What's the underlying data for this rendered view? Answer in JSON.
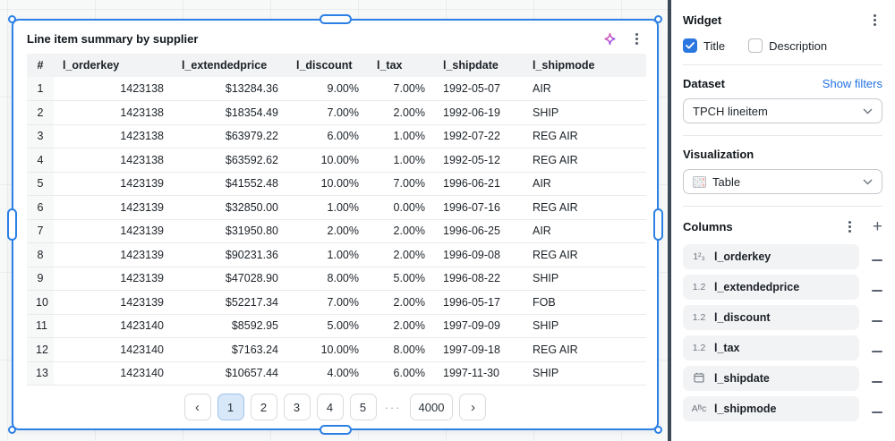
{
  "colors": {
    "selection_blue": "#2c80e4",
    "link_blue": "#2272e3",
    "checkbox_blue": "#2b77e0",
    "panel_divider": "#3d4956",
    "active_page_bg": "#d9e8f9"
  },
  "widget": {
    "title": "Line item summary by supplier",
    "icons": [
      "sparkle-icon",
      "kebab-menu-icon"
    ],
    "table": {
      "columns": [
        {
          "label": "#",
          "align": "center",
          "width": 30,
          "index": true
        },
        {
          "label": "l_orderkey",
          "align": "right",
          "width": 133
        },
        {
          "label": "l_extendedprice",
          "align": "right",
          "width": 128
        },
        {
          "label": "l_discount",
          "align": "right",
          "width": 90
        },
        {
          "label": "l_tax",
          "align": "right",
          "width": 74
        },
        {
          "label": "l_shipdate",
          "align": "left",
          "width": 100
        },
        {
          "label": "l_shipmode",
          "align": "left",
          "width": 137
        }
      ],
      "rows": [
        [
          "1",
          "1423138",
          "$13284.36",
          "9.00%",
          "7.00%",
          "1992-05-07",
          "AIR"
        ],
        [
          "2",
          "1423138",
          "$18354.49",
          "7.00%",
          "2.00%",
          "1992-06-19",
          "SHIP"
        ],
        [
          "3",
          "1423138",
          "$63979.22",
          "6.00%",
          "1.00%",
          "1992-07-22",
          "REG AIR"
        ],
        [
          "4",
          "1423138",
          "$63592.62",
          "10.00%",
          "1.00%",
          "1992-05-12",
          "REG AIR"
        ],
        [
          "5",
          "1423139",
          "$41552.48",
          "10.00%",
          "7.00%",
          "1996-06-21",
          "AIR"
        ],
        [
          "6",
          "1423139",
          "$32850.00",
          "1.00%",
          "0.00%",
          "1996-07-16",
          "REG AIR"
        ],
        [
          "7",
          "1423139",
          "$31950.80",
          "2.00%",
          "2.00%",
          "1996-06-25",
          "AIR"
        ],
        [
          "8",
          "1423139",
          "$90231.36",
          "1.00%",
          "2.00%",
          "1996-09-08",
          "REG AIR"
        ],
        [
          "9",
          "1423139",
          "$47028.90",
          "8.00%",
          "5.00%",
          "1996-08-22",
          "SHIP"
        ],
        [
          "10",
          "1423139",
          "$52217.34",
          "7.00%",
          "2.00%",
          "1996-05-17",
          "FOB"
        ],
        [
          "11",
          "1423140",
          "$8592.95",
          "5.00%",
          "2.00%",
          "1997-09-09",
          "SHIP"
        ],
        [
          "12",
          "1423140",
          "$7163.24",
          "10.00%",
          "8.00%",
          "1997-09-18",
          "REG AIR"
        ],
        [
          "13",
          "1423140",
          "$10657.44",
          "4.00%",
          "6.00%",
          "1997-11-30",
          "SHIP"
        ]
      ]
    },
    "pagination": {
      "prev": "‹",
      "next": "›",
      "pages": [
        "1",
        "2",
        "3",
        "4",
        "5"
      ],
      "ellipsis": "···",
      "last_page": "4000",
      "active": "1"
    }
  },
  "sidebar": {
    "widget_section": {
      "title": "Widget",
      "toggles": [
        {
          "label": "Title",
          "checked": true
        },
        {
          "label": "Description",
          "checked": false
        }
      ]
    },
    "dataset_section": {
      "title": "Dataset",
      "action": "Show filters",
      "selected": "TPCH lineitem"
    },
    "visualization_section": {
      "title": "Visualization",
      "selected": "Table"
    },
    "columns_section": {
      "title": "Columns",
      "type_glyphs": {
        "integer": "1²₃",
        "decimal": "1.2",
        "string": "Aᴮᴄ"
      },
      "items": [
        {
          "type": "integer",
          "label": "l_orderkey"
        },
        {
          "type": "decimal",
          "label": "l_extendedprice"
        },
        {
          "type": "decimal",
          "label": "l_discount"
        },
        {
          "type": "decimal",
          "label": "l_tax"
        },
        {
          "type": "date",
          "label": "l_shipdate"
        },
        {
          "type": "string",
          "label": "l_shipmode"
        }
      ]
    }
  }
}
